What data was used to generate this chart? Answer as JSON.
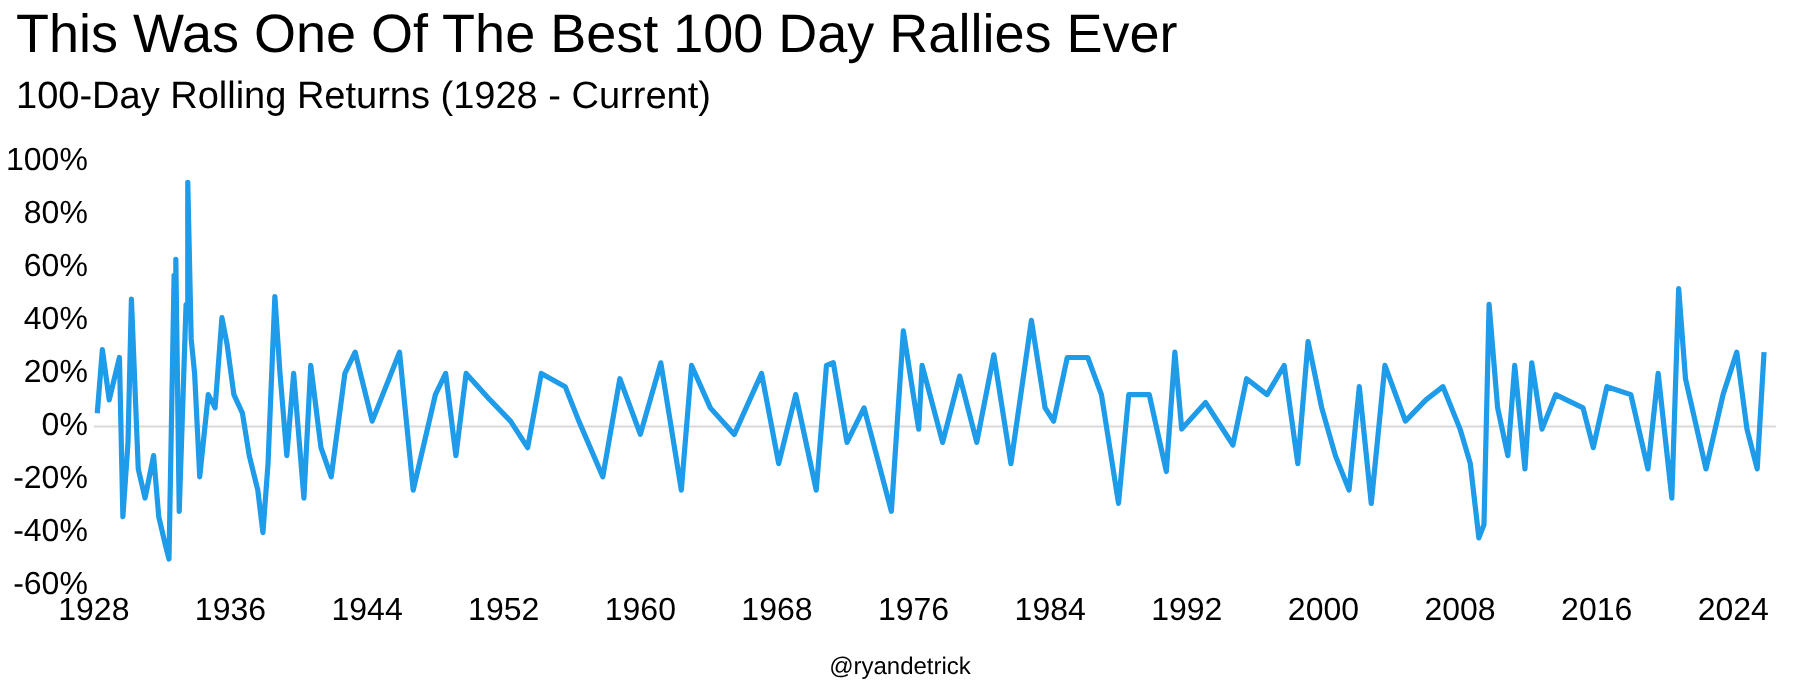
{
  "chart_data": {
    "type": "line",
    "title": "This Was One Of The Best 100 Day Rallies Ever",
    "subtitle": "100-Day Rolling Returns (1928 - Current)",
    "annotations": [
      "@ryandetrick"
    ],
    "x": [
      1928.2,
      1928.5,
      1928.9,
      1929.5,
      1929.7,
      1930.0,
      1930.2,
      1930.6,
      1931.0,
      1931.5,
      1931.8,
      1932.2,
      1932.4,
      1932.7,
      1932.8,
      1933.0,
      1933.4,
      1933.5,
      1933.7,
      1933.9,
      1934.2,
      1934.7,
      1935.1,
      1935.5,
      1935.8,
      1936.2,
      1936.7,
      1937.1,
      1937.6,
      1937.9,
      1938.2,
      1938.6,
      1938.9,
      1939.3,
      1939.7,
      1940.3,
      1940.7,
      1941.3,
      1941.9,
      1942.7,
      1943.3,
      1944.3,
      1945.9,
      1946.7,
      1948.0,
      1948.6,
      1949.2,
      1949.8,
      1951.2,
      1952.4,
      1953.4,
      1954.2,
      1955.6,
      1956.4,
      1957.8,
      1958.8,
      1960.0,
      1961.2,
      1962.4,
      1963.0,
      1964.1,
      1965.5,
      1967.1,
      1968.1,
      1969.1,
      1970.3,
      1970.9,
      1971.3,
      1972.1,
      1973.1,
      1974.7,
      1975.4,
      1976.3,
      1976.5,
      1977.7,
      1978.7,
      1979.7,
      1980.7,
      1981.7,
      1982.9,
      1983.7,
      1984.2,
      1985.0,
      1986.2,
      1987.0,
      1988.0,
      1988.6,
      1989.8,
      1990.8,
      1991.3,
      1991.7,
      1993.1,
      1994.7,
      1995.5,
      1996.7,
      1997.7,
      1998.5,
      1999.1,
      1999.9,
      2000.7,
      2001.5,
      2002.1,
      2002.8,
      2003.6,
      2004.8,
      2006.0,
      2007.0,
      2008.0,
      2008.6,
      2009.1,
      2009.4,
      2009.7,
      2010.2,
      2010.8,
      2011.2,
      2011.8,
      2012.2,
      2012.8,
      2013.6,
      2015.2,
      2015.8,
      2016.6,
      2018.0,
      2019.0,
      2019.6,
      2020.4,
      2020.8,
      2021.2,
      2022.4,
      2023.4,
      2024.2,
      2024.8,
      2025.4,
      2025.8
    ],
    "series": [
      {
        "color": "#1e9be9",
        "values": [
          5,
          29,
          10,
          26,
          -34,
          -6,
          48,
          -16,
          -27,
          -11,
          -34,
          -45,
          -50,
          57,
          63,
          -32,
          46,
          92,
          33,
          20,
          -19,
          12,
          7,
          41,
          31,
          12,
          5,
          -11,
          -24,
          -40,
          -14,
          49,
          20,
          -11,
          20,
          -27,
          23,
          -8,
          -19,
          20,
          28,
          2,
          28,
          -24,
          12,
          20,
          -11,
          20,
          10,
          2,
          -8,
          20,
          15,
          2,
          -19,
          18,
          -3,
          24,
          -24,
          23,
          7,
          -3,
          20,
          -14,
          12,
          -24,
          23,
          24,
          -6,
          7,
          -32,
          36,
          -1,
          23,
          -6,
          19,
          -6,
          27,
          -14,
          40,
          7,
          2,
          26,
          26,
          12,
          -29,
          12,
          12,
          -17,
          28,
          -1,
          9,
          -7,
          18,
          12,
          23,
          -14,
          32,
          7,
          -11,
          -24,
          15,
          -29,
          23,
          2,
          10,
          15,
          -1,
          -14,
          -42,
          -37,
          46,
          7,
          -11,
          23,
          -16,
          24,
          -1,
          12,
          7,
          -8,
          15,
          12,
          -16,
          20,
          -27,
          52,
          18,
          -16,
          12,
          28,
          -1,
          -16,
          28
        ]
      }
    ],
    "xlim": [
      1928,
      2026.5
    ],
    "xticks": [
      1928,
      1936,
      1944,
      1952,
      1960,
      1968,
      1976,
      1984,
      1992,
      2000,
      2008,
      2016,
      2024
    ],
    "ylim": [
      -60,
      100
    ],
    "yticks": [
      {
        "value": -60,
        "label": "-60%"
      },
      {
        "value": -40,
        "label": "-40%"
      },
      {
        "value": -20,
        "label": "-20%"
      },
      {
        "value": 0,
        "label": "0%"
      },
      {
        "value": 20,
        "label": "20%"
      },
      {
        "value": 40,
        "label": "40%"
      },
      {
        "value": 60,
        "label": "60%"
      },
      {
        "value": 80,
        "label": "80%"
      },
      {
        "value": 100,
        "label": "100%"
      }
    ],
    "ref_lines": [
      {
        "axis": "y",
        "value": 0,
        "color": "#d9d9d9"
      }
    ],
    "grid": false,
    "legend": false,
    "marker": "none",
    "line_style": "solid"
  }
}
